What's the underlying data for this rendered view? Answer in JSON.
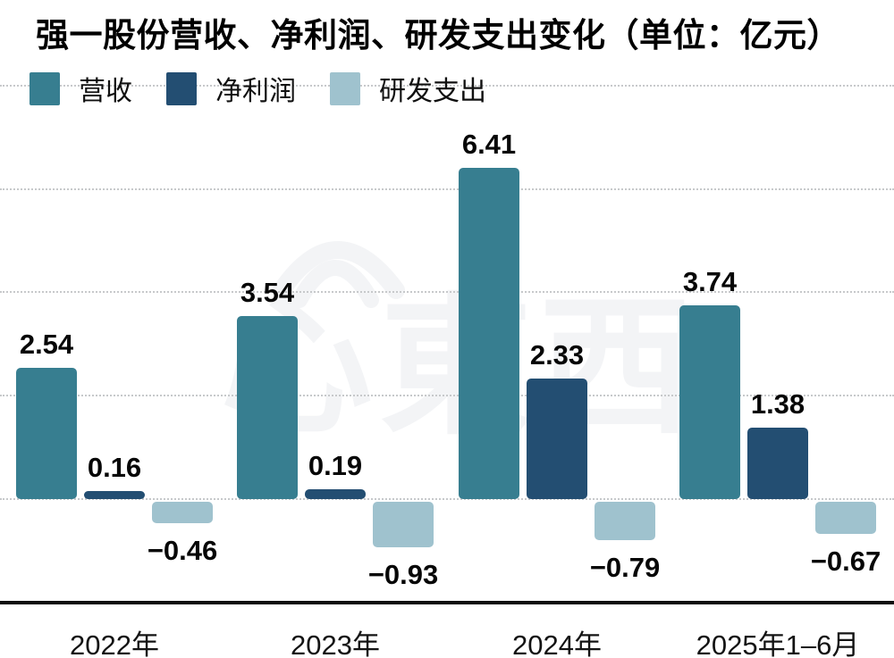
{
  "title": "强一股份营收、净利润、研发支出变化（单位：亿元）",
  "watermark": {
    "text": "心東西",
    "color": "#f3f4f6"
  },
  "legend": {
    "items": [
      {
        "label": "营收",
        "color": "#377E90"
      },
      {
        "label": "净利润",
        "color": "#234E72"
      },
      {
        "label": "研发支出",
        "color": "#9FC2CE"
      }
    ]
  },
  "chart_data": {
    "type": "bar",
    "title": "强一股份营收、净利润、研发支出变化（单位：亿元）",
    "unit_label": "亿元",
    "categories": [
      "2022年",
      "2023年",
      "2024年",
      "2025年1–6月"
    ],
    "series": [
      {
        "name": "营收",
        "color": "#377E90",
        "values": [
          2.54,
          3.54,
          6.41,
          3.74
        ]
      },
      {
        "name": "净利润",
        "color": "#234E72",
        "values": [
          0.16,
          0.19,
          2.33,
          1.38
        ]
      },
      {
        "name": "研发支出",
        "color": "#9FC2CE",
        "values": [
          -0.46,
          -0.93,
          -0.79,
          -0.67
        ]
      }
    ],
    "ylim": [
      -2,
      8
    ],
    "gridline_values": [
      0,
      2,
      4,
      6,
      8
    ],
    "grid": "horizontal-dotted",
    "legend_position": "top-left",
    "value_labels": true,
    "x_axis_line": true,
    "background": "#ffffff"
  }
}
